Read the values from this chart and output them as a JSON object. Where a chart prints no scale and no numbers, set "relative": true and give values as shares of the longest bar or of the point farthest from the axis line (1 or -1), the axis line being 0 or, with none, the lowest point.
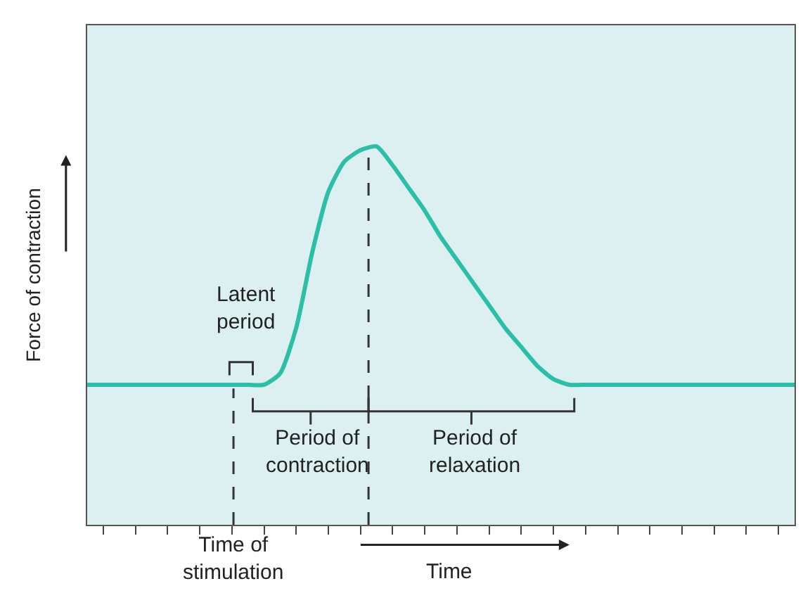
{
  "chart_data": {
    "type": "line",
    "relative": true,
    "xlabel": "Time",
    "ylabel": "Force of contraction",
    "categories": [
      null,
      null,
      null,
      null,
      null,
      null,
      null,
      null,
      null,
      null,
      null,
      null,
      null,
      null,
      null,
      null,
      null,
      null,
      null,
      null,
      null,
      null,
      null,
      null,
      null,
      null,
      null,
      null,
      null,
      null,
      null,
      null,
      null,
      null,
      null,
      null,
      null,
      null,
      null,
      null,
      null,
      null,
      null,
      null,
      null
    ],
    "series": [
      {
        "color": "#2bbfa8",
        "values": [
          0.37,
          0.37,
          0.37,
          0.37,
          0.37,
          0.37,
          0.37,
          0.37,
          0.37,
          0.37,
          0.37,
          0.37,
          0.4,
          0.52,
          0.72,
          0.88,
          0.96,
          0.99,
          1.0,
          0.95,
          0.89,
          0.83,
          0.76,
          0.7,
          0.64,
          0.58,
          0.52,
          0.47,
          0.42,
          0.385,
          0.37,
          0.37,
          0.37,
          0.37,
          0.37,
          0.37,
          0.37,
          0.37,
          0.37,
          0.37,
          0.37,
          0.37,
          0.37,
          0.37,
          0.37
        ]
      }
    ],
    "annotations": [
      "Latent\nperiod",
      "Period of\ncontraction",
      "Period of\nrelaxation",
      "Time of\nstimulation"
    ],
    "grid": false,
    "tick_labels": false,
    "marker": "none",
    "line_style": "solid"
  }
}
